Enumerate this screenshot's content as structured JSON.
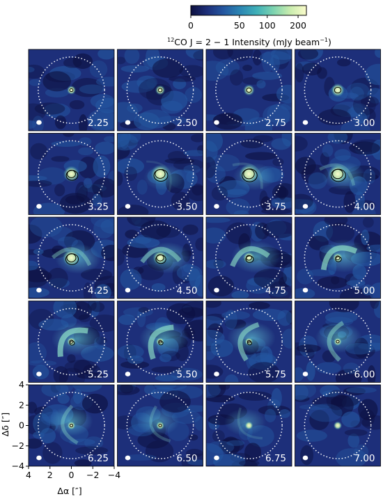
{
  "colorbar": {
    "label_prefix": "12",
    "label_main": "CO J = 2 − 1 Intensity (mJy beam",
    "label_exp": "−1",
    "label_close": ")",
    "ticks": [
      "0",
      "50",
      "100",
      "200"
    ],
    "tick_values": [
      0,
      50,
      100,
      200
    ],
    "range": [
      0,
      240
    ],
    "scale": "asinh"
  },
  "colormap": [
    "#0d1040",
    "#1d2f7a",
    "#2457a0",
    "#2b86b3",
    "#3fb0b8",
    "#7cd3b0",
    "#c8ecae",
    "#fbfccb"
  ],
  "chart_data": {
    "type": "heatmap",
    "title": "",
    "panel_labels": [
      "2.25",
      "2.50",
      "2.75",
      "3.00",
      "3.25",
      "3.50",
      "3.75",
      "4.00",
      "4.25",
      "4.50",
      "4.75",
      "5.00",
      "5.25",
      "5.50",
      "5.75",
      "6.00",
      "6.25",
      "6.50",
      "6.75",
      "7.00"
    ],
    "grid": {
      "rows": 5,
      "cols": 4
    },
    "xlabel": "Δα [″]",
    "ylabel": "Δδ [″]",
    "xlim": [
      4,
      -4
    ],
    "ylim": [
      -4,
      4
    ],
    "x_ticks": [
      "4",
      "2",
      "0",
      "−2",
      "−4"
    ],
    "x_tick_values": [
      4,
      2,
      0,
      -2,
      -4
    ],
    "y_ticks": [
      "4",
      "2",
      "0",
      "−2",
      "−4"
    ],
    "y_tick_values": [
      4,
      2,
      0,
      -2,
      -4
    ],
    "ring_radius_arcsec": 2,
    "ring_style": "white dotted circle",
    "beam_marker": "white filled ellipse, lower-left corner",
    "contours": "black"
  }
}
